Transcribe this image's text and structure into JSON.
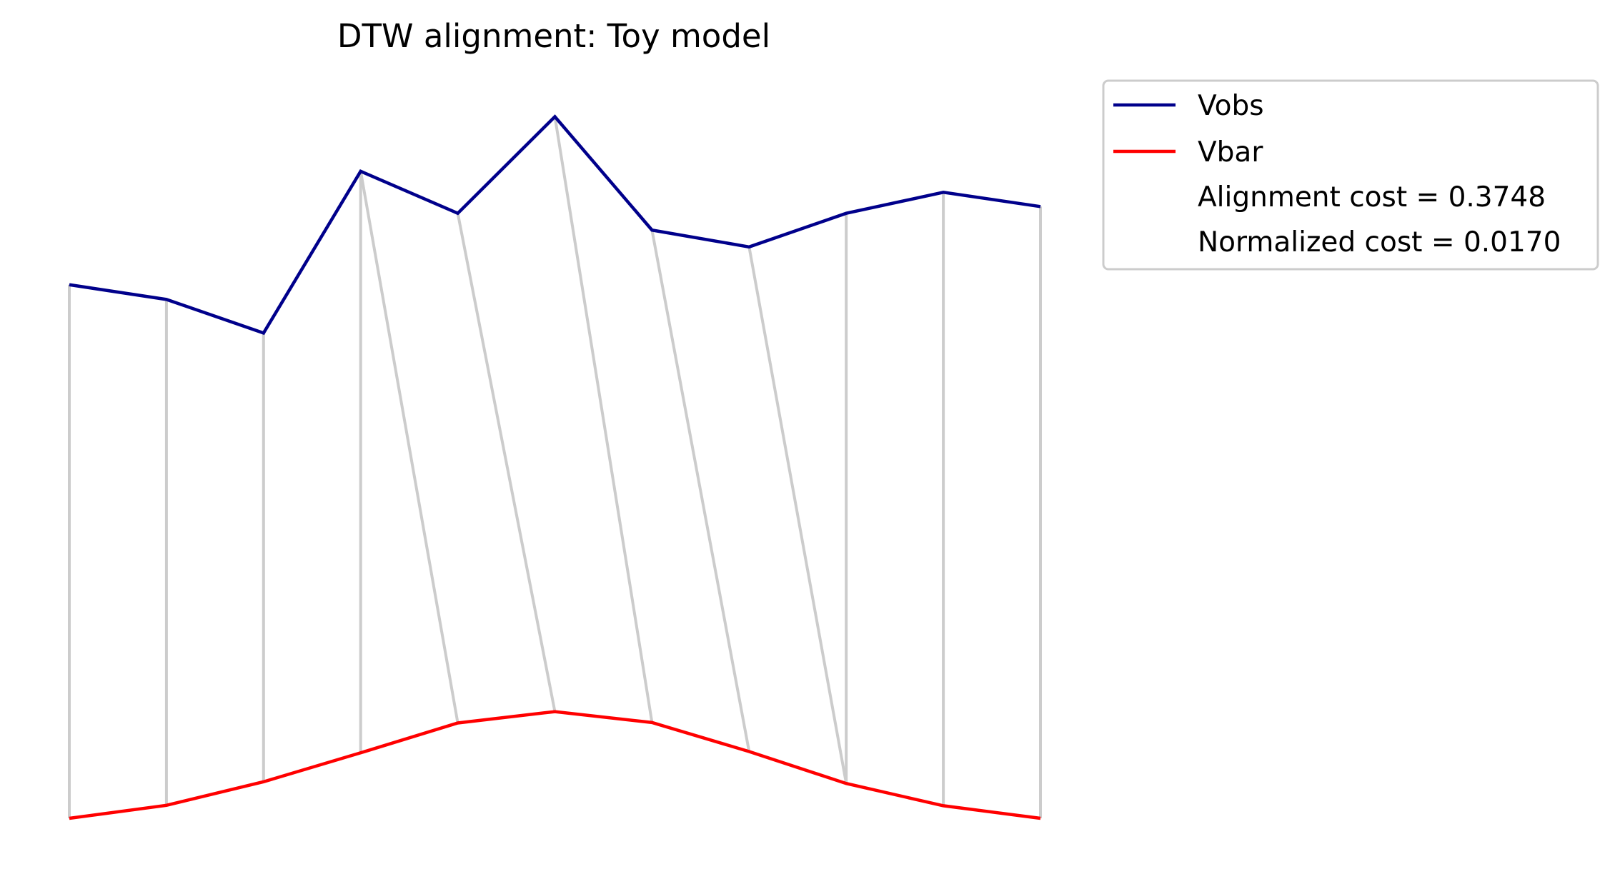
{
  "chart_data": {
    "type": "line",
    "title": "DTW alignment: Toy model",
    "xlabel": "",
    "ylabel": "",
    "axes_visible": false,
    "grid": false,
    "legend_position": "outside-top-right",
    "x": [
      0,
      1,
      2,
      3,
      4,
      5,
      6,
      7,
      8,
      9,
      10
    ],
    "series": [
      {
        "name": "Vobs",
        "color": "#00008b",
        "values": [
          0.58,
          0.545,
          0.465,
          0.85,
          0.75,
          0.98,
          0.71,
          0.67,
          0.75,
          0.8,
          0.766
        ]
      },
      {
        "name": "Vbar",
        "color": "#ff0000",
        "values": [
          -0.69,
          -0.659,
          -0.603,
          -0.534,
          -0.463,
          -0.436,
          -0.462,
          -0.531,
          -0.607,
          -0.66,
          -0.69
        ]
      }
    ],
    "alignment": {
      "color": "#cccccc",
      "pairs": [
        [
          0,
          0
        ],
        [
          1,
          1
        ],
        [
          2,
          2
        ],
        [
          3,
          3
        ],
        [
          3,
          4
        ],
        [
          4,
          5
        ],
        [
          5,
          6
        ],
        [
          6,
          7
        ],
        [
          7,
          8
        ],
        [
          8,
          8
        ],
        [
          9,
          9
        ],
        [
          10,
          10
        ]
      ]
    },
    "ylim": [
      -0.78,
      1.12
    ],
    "annotations": [
      "Alignment cost = 0.3748",
      "Normalized cost = 0.0170"
    ]
  }
}
